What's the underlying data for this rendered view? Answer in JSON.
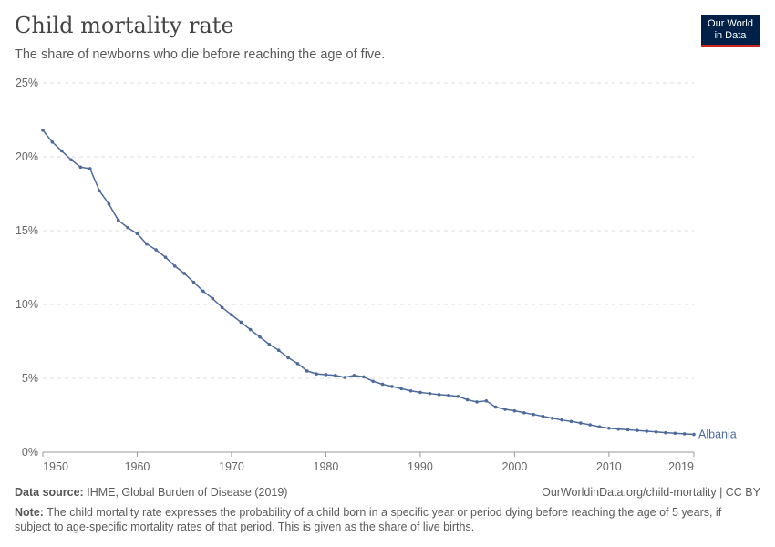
{
  "header": {
    "title": "Child mortality rate",
    "subtitle": "The share of newborns who die before reaching the age of five.",
    "logo": "Our World in Data",
    "logo_line1": "Our World",
    "logo_line2": "in Data"
  },
  "chart_data": {
    "type": "line",
    "title": "Child mortality rate",
    "subtitle": "The share of newborns who die before reaching the age of five.",
    "xlim": [
      1950,
      2019
    ],
    "ylim": [
      0,
      25
    ],
    "x_ticks": [
      "1950",
      "1960",
      "1970",
      "1980",
      "1990",
      "2000",
      "2010",
      "2019"
    ],
    "y_ticks": [
      "0%",
      "5%",
      "10%",
      "15%",
      "20%",
      "25%"
    ],
    "grid": "horizontal dashed",
    "series": [
      {
        "name": "Albania",
        "color": "#4c6a9c",
        "x": [
          1950,
          1951,
          1952,
          1953,
          1954,
          1955,
          1956,
          1957,
          1958,
          1959,
          1960,
          1961,
          1962,
          1963,
          1964,
          1965,
          1966,
          1967,
          1968,
          1969,
          1970,
          1971,
          1972,
          1973,
          1974,
          1975,
          1976,
          1977,
          1978,
          1979,
          1980,
          1981,
          1982,
          1983,
          1984,
          1985,
          1986,
          1987,
          1988,
          1989,
          1990,
          1991,
          1992,
          1993,
          1994,
          1995,
          1996,
          1997,
          1998,
          1999,
          2000,
          2001,
          2002,
          2003,
          2004,
          2005,
          2006,
          2007,
          2008,
          2009,
          2010,
          2011,
          2012,
          2013,
          2014,
          2015,
          2016,
          2017,
          2018,
          2019
        ],
        "values": [
          21.8,
          21.0,
          20.4,
          19.8,
          19.3,
          19.2,
          17.7,
          16.8,
          15.7,
          15.2,
          14.8,
          14.1,
          13.7,
          13.2,
          12.6,
          12.1,
          11.5,
          10.9,
          10.4,
          9.8,
          9.3,
          8.8,
          8.3,
          7.8,
          7.3,
          6.9,
          6.4,
          6.0,
          5.5,
          5.3,
          5.25,
          5.2,
          5.06,
          5.2,
          5.1,
          4.8,
          4.6,
          4.45,
          4.3,
          4.15,
          4.05,
          3.97,
          3.9,
          3.85,
          3.78,
          3.55,
          3.4,
          3.47,
          3.05,
          2.9,
          2.8,
          2.67,
          2.55,
          2.43,
          2.3,
          2.18,
          2.08,
          1.97,
          1.85,
          1.72,
          1.62,
          1.57,
          1.52,
          1.47,
          1.42,
          1.37,
          1.32,
          1.28,
          1.24,
          1.2
        ]
      }
    ]
  },
  "footer": {
    "source_label": "Data source:",
    "source": "IHME, Global Burden of Disease (2019)",
    "url": "OurWorldinData.org/child-mortality | CC BY",
    "note_label": "Note:",
    "note": "The child mortality rate expresses the probability of a child born in a specific year or period dying before reaching the age of 5 years, if subject to age-specific mortality rates of that period. This is given as the share of live births."
  }
}
